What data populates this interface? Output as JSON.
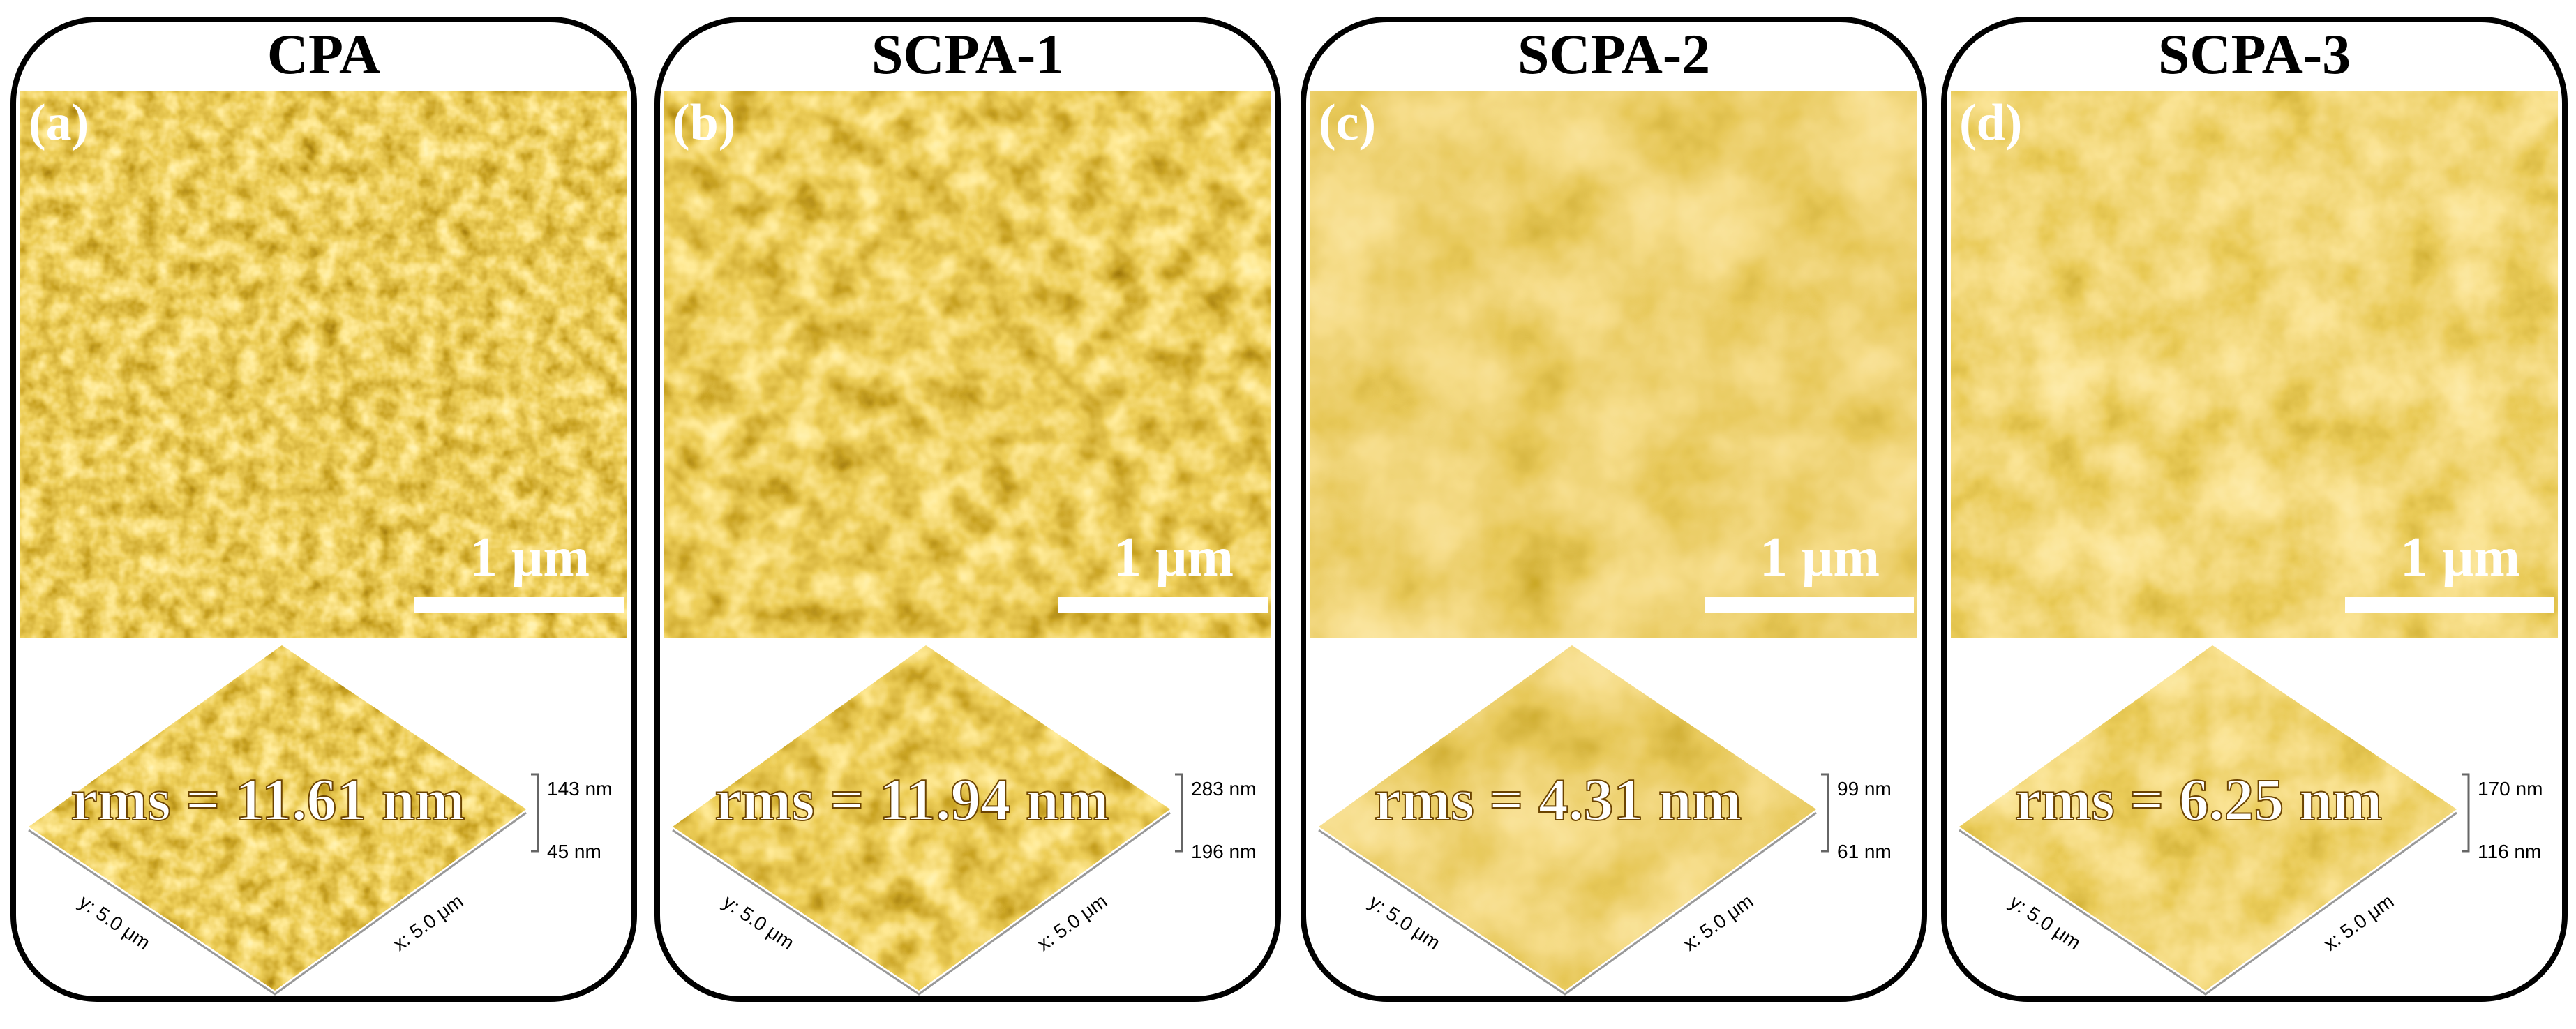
{
  "panels": [
    {
      "title": "CPA",
      "label": "(a)",
      "scale_bar": "1 μm",
      "rms": "rms = 11.61 nm",
      "z_max": "143 nm",
      "z_min": "45 nm",
      "y_axis": "y: 5.0 μm",
      "x_axis": "x: 5.0 μm"
    },
    {
      "title": "SCPA-1",
      "label": "(b)",
      "scale_bar": "1 μm",
      "rms": "rms = 11.94 nm",
      "z_max": "283 nm",
      "z_min": "196 nm",
      "y_axis": "y: 5.0 μm",
      "x_axis": "x: 5.0 μm"
    },
    {
      "title": "SCPA-2",
      "label": "(c)",
      "scale_bar": "1 μm",
      "rms": "rms = 4.31 nm",
      "z_max": "99 nm",
      "z_min": "61 nm",
      "y_axis": "y: 5.0 μm",
      "x_axis": "x: 5.0 μm"
    },
    {
      "title": "SCPA-3",
      "label": "(d)",
      "scale_bar": "1 μm",
      "rms": "rms = 6.25 nm",
      "z_max": "170 nm",
      "z_min": "116 nm",
      "y_axis": "y: 5.0 μm",
      "x_axis": "x: 5.0 μm"
    }
  ]
}
